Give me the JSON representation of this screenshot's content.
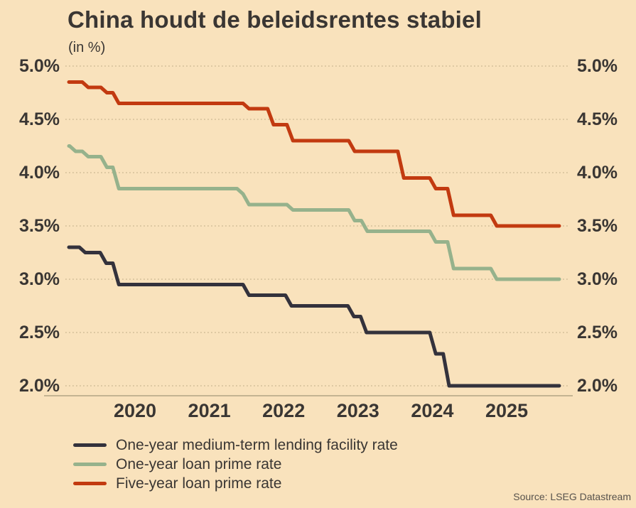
{
  "chart_data": {
    "type": "line",
    "title": "China houdt de beleidsrentes stabiel",
    "subtitle": "(in %)",
    "source": "Source: LSEG Datastream",
    "legend_position": "bottom-left",
    "grid": "horizontal-dotted",
    "ylim": [
      2.0,
      5.0
    ],
    "x_domain": [
      2019.63,
      2026.22
    ],
    "x_ticks": [
      "2020",
      "2021",
      "2022",
      "2023",
      "2024",
      "2025"
    ],
    "y_ticks": [
      {
        "label": "5.0%",
        "value": 5.0
      },
      {
        "label": "4.5%",
        "value": 4.5
      },
      {
        "label": "4.0%",
        "value": 4.0
      },
      {
        "label": "3.5%",
        "value": 3.5
      },
      {
        "label": "3.0%",
        "value": 3.0
      },
      {
        "label": "2.5%",
        "value": 2.5
      },
      {
        "label": "2.0%",
        "value": 2.0
      }
    ],
    "step_transition_years": 0.08,
    "series": [
      {
        "name": "One-year medium-term lending facility rate",
        "color": "#34323C",
        "steps": [
          [
            2019.63,
            3.3
          ],
          [
            2019.85,
            3.25
          ],
          [
            2020.13,
            3.15
          ],
          [
            2020.3,
            2.95
          ],
          [
            2022.05,
            2.85
          ],
          [
            2022.62,
            2.75
          ],
          [
            2023.46,
            2.65
          ],
          [
            2023.63,
            2.5
          ],
          [
            2024.56,
            2.3
          ],
          [
            2024.74,
            2.0
          ]
        ]
      },
      {
        "name": "One-year loan prime rate",
        "color": "#96B28C",
        "steps": [
          [
            2019.63,
            4.25
          ],
          [
            2019.72,
            4.2
          ],
          [
            2019.89,
            4.15
          ],
          [
            2020.14,
            4.05
          ],
          [
            2020.3,
            3.85
          ],
          [
            2021.97,
            3.8
          ],
          [
            2022.05,
            3.7
          ],
          [
            2022.64,
            3.65
          ],
          [
            2023.47,
            3.55
          ],
          [
            2023.64,
            3.45
          ],
          [
            2024.56,
            3.35
          ],
          [
            2024.8,
            3.1
          ],
          [
            2025.38,
            3.0
          ]
        ]
      },
      {
        "name": "Five-year loan prime rate",
        "color": "#C23A10",
        "steps": [
          [
            2019.63,
            4.85
          ],
          [
            2019.89,
            4.8
          ],
          [
            2020.14,
            4.75
          ],
          [
            2020.3,
            4.65
          ],
          [
            2022.05,
            4.6
          ],
          [
            2022.38,
            4.45
          ],
          [
            2022.64,
            4.3
          ],
          [
            2023.47,
            4.2
          ],
          [
            2024.13,
            3.95
          ],
          [
            2024.56,
            3.85
          ],
          [
            2024.8,
            3.6
          ],
          [
            2025.38,
            3.5
          ]
        ]
      }
    ],
    "layout": {
      "x0": 97,
      "x1": 787,
      "y_top": 93,
      "y_bottom": 543,
      "grid_x0": 92,
      "grid_x1": 800,
      "axis_y": 557,
      "axis_x0": 62,
      "axis_x1": 806,
      "tick_xs": [
        190,
        294.6,
        399.2,
        503.8,
        608.4,
        713
      ],
      "line_width": 5,
      "grid_color": "#C6B38D",
      "axis_color": "#B3A483"
    }
  }
}
